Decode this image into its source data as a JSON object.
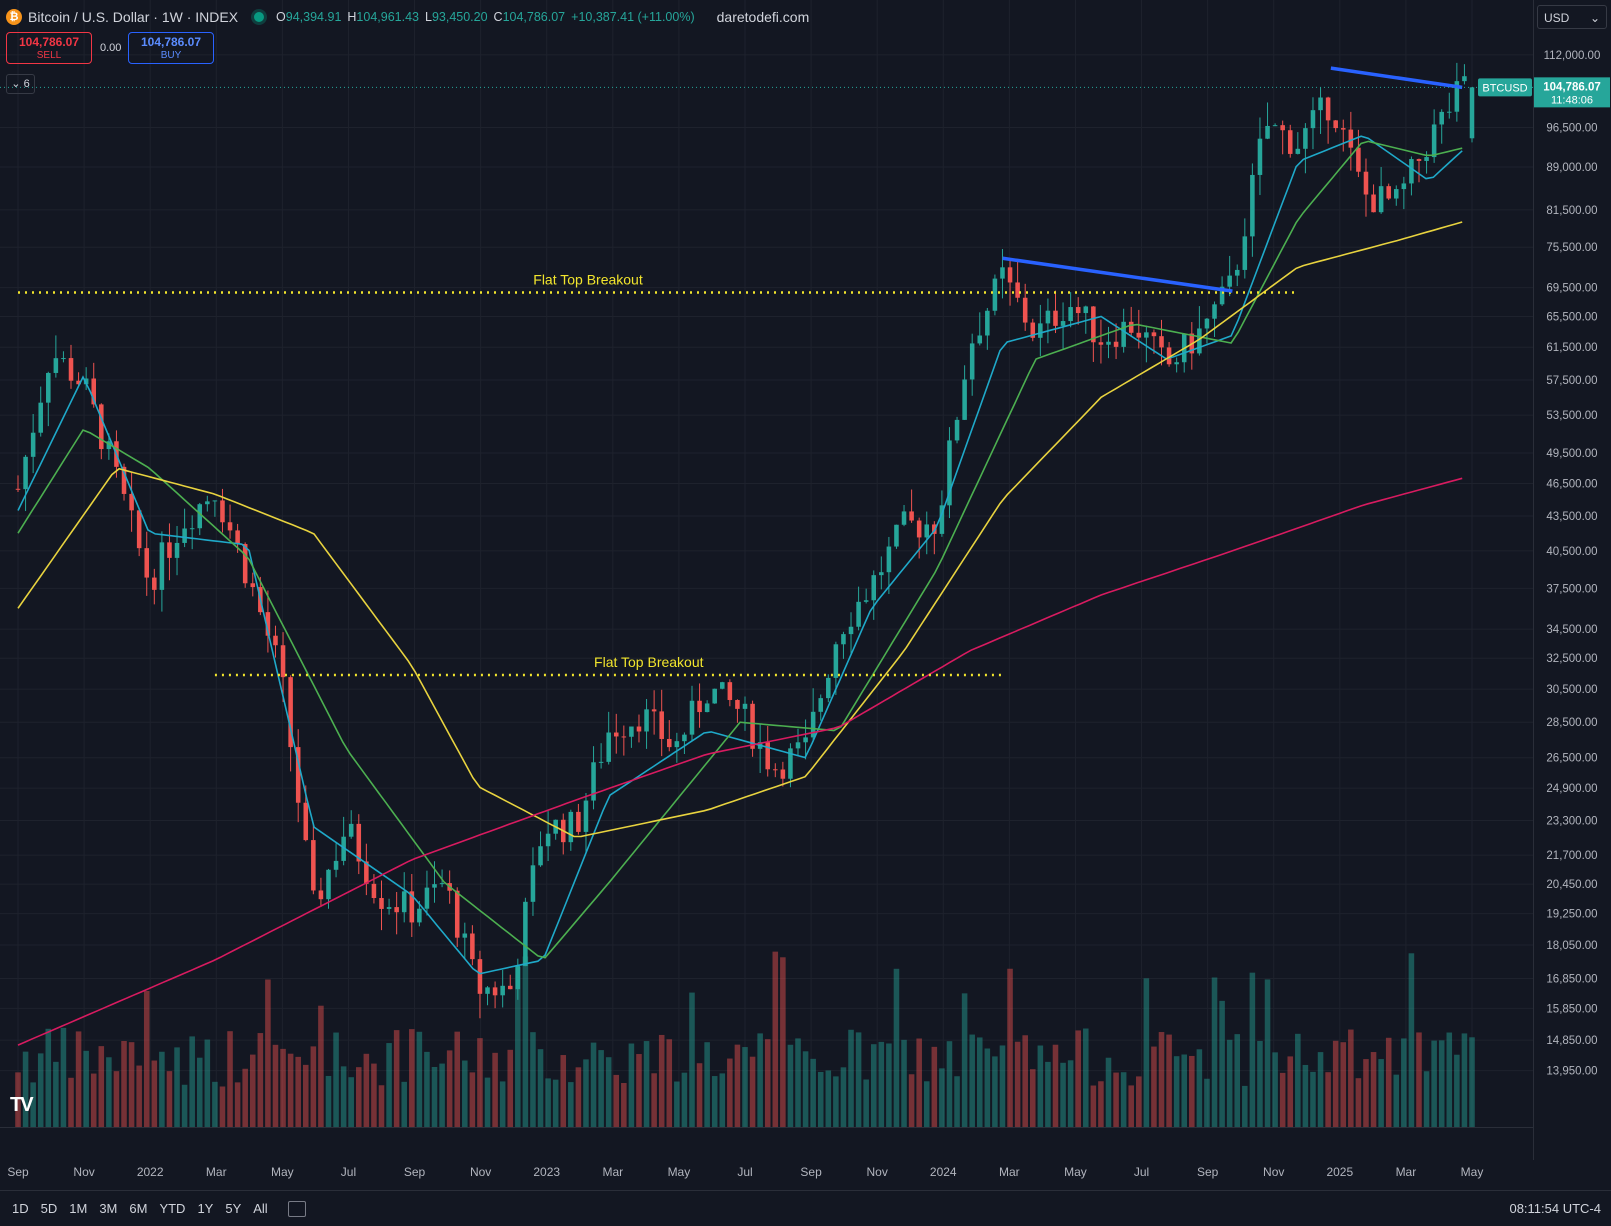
{
  "header": {
    "coin_icon": "bitcoin-icon",
    "symbol_title": "Bitcoin / U.S. Dollar · 1W · INDEX",
    "o_label": "O",
    "o_value": "94,394.91",
    "h_label": "H",
    "h_value": "104,961.43",
    "l_label": "L",
    "l_value": "93,450.20",
    "c_label": "C",
    "c_value": "104,786.07",
    "change": "+10,387.41 (+11.00%)",
    "site": "daretodefi.com"
  },
  "trade": {
    "sell_price": "104,786.07",
    "sell_label": "SELL",
    "spread": "0.00",
    "buy_price": "104,786.07",
    "buy_label": "BUY"
  },
  "indicators_collapse": "6",
  "currency": "USD",
  "price_label": {
    "symbol": "BTCUSD",
    "price": "104,786.07",
    "countdown": "11:48:06"
  },
  "timeframes": [
    "1D",
    "5D",
    "1M",
    "3M",
    "6M",
    "YTD",
    "1Y",
    "5Y",
    "All"
  ],
  "clock": "08:11:54 UTC-4",
  "colors": {
    "up": "#26a69a",
    "down": "#ef5350",
    "ma_cyan": "#1fa9c9",
    "ma_green": "#4caf50",
    "ma_yellow": "#e8d33f",
    "ma_red": "#d81b60",
    "trendline": "#2962ff",
    "flat_top": "#f2e52d"
  },
  "chart_data": {
    "type": "candlestick",
    "title": "Bitcoin / U.S. Dollar · 1W · INDEX",
    "scale": "log",
    "ylim": [
      13000,
      115000
    ],
    "price_ticks": [
      112000,
      96500,
      89000,
      81500,
      75500,
      69500,
      65500,
      61500,
      57500,
      53500,
      49500,
      46500,
      43500,
      40500,
      37500,
      34500,
      32500,
      30500,
      28500,
      26500,
      24900,
      23300,
      21700,
      20450,
      19250,
      18050,
      16850,
      15850,
      14850,
      13950
    ],
    "x_labels": [
      "Sep",
      "Nov",
      "2022",
      "Mar",
      "May",
      "Jul",
      "Sep",
      "Nov",
      "2023",
      "Mar",
      "May",
      "Jul",
      "Sep",
      "Nov",
      "2024",
      "Mar",
      "May",
      "Jul",
      "Sep",
      "Nov",
      "2025",
      "Mar",
      "May"
    ],
    "close_path": [
      [
        "2021-09",
        46000
      ],
      [
        "2021-10",
        61000
      ],
      [
        "2021-11",
        57000
      ],
      [
        "2021-12",
        47000
      ],
      [
        "2022-01",
        38000
      ],
      [
        "2022-02",
        43000
      ],
      [
        "2022-03",
        46000
      ],
      [
        "2022-04",
        38500
      ],
      [
        "2022-05",
        31500
      ],
      [
        "2022-06",
        19500
      ],
      [
        "2022-07",
        23000
      ],
      [
        "2022-08",
        20000
      ],
      [
        "2022-09",
        19400
      ],
      [
        "2022-10",
        20500
      ],
      [
        "2022-11",
        16500
      ],
      [
        "2022-12",
        16500
      ],
      [
        "2023-01",
        23000
      ],
      [
        "2023-02",
        23000
      ],
      [
        "2023-03",
        28000
      ],
      [
        "2023-04",
        29000
      ],
      [
        "2023-05",
        27000
      ],
      [
        "2023-06",
        30500
      ],
      [
        "2023-07",
        29200
      ],
      [
        "2023-08",
        26000
      ],
      [
        "2023-09",
        27000
      ],
      [
        "2023-10",
        34500
      ],
      [
        "2023-11",
        37800
      ],
      [
        "2023-12",
        42500
      ],
      [
        "2024-01",
        43000
      ],
      [
        "2024-02",
        62000
      ],
      [
        "2024-03",
        71000
      ],
      [
        "2024-04",
        63000
      ],
      [
        "2024-05",
        67500
      ],
      [
        "2024-06",
        62700
      ],
      [
        "2024-07",
        64600
      ],
      [
        "2024-08",
        59000
      ],
      [
        "2024-09",
        63300
      ],
      [
        "2024-10",
        70000
      ],
      [
        "2024-11",
        97000
      ],
      [
        "2024-12",
        93400
      ],
      [
        "2025-01",
        102000
      ],
      [
        "2025-02",
        84000
      ],
      [
        "2025-03",
        82500
      ],
      [
        "2025-04",
        94200
      ],
      [
        "2025-05",
        104786.07
      ]
    ],
    "moving_averages": [
      {
        "color": "cyan",
        "points": [
          [
            "2021-09",
            44000
          ],
          [
            "2021-11",
            58000
          ],
          [
            "2022-01",
            42000
          ],
          [
            "2022-04",
            41000
          ],
          [
            "2022-06",
            23000
          ],
          [
            "2022-09",
            20000
          ],
          [
            "2022-11",
            17000
          ],
          [
            "2023-01",
            17500
          ],
          [
            "2023-03",
            24500
          ],
          [
            "2023-06",
            28000
          ],
          [
            "2023-09",
            26500
          ],
          [
            "2023-11",
            36000
          ],
          [
            "2024-01",
            42500
          ],
          [
            "2024-03",
            62000
          ],
          [
            "2024-06",
            65500
          ],
          [
            "2024-08",
            60000
          ],
          [
            "2024-10",
            63000
          ],
          [
            "2024-12",
            90000
          ],
          [
            "2025-02",
            95000
          ],
          [
            "2025-04",
            86500
          ],
          [
            "2025-05",
            92000
          ]
        ]
      },
      {
        "color": "green",
        "points": [
          [
            "2021-09",
            42000
          ],
          [
            "2021-11",
            52000
          ],
          [
            "2022-01",
            48000
          ],
          [
            "2022-04",
            40000
          ],
          [
            "2022-07",
            27000
          ],
          [
            "2022-10",
            20500
          ],
          [
            "2023-01",
            17500
          ],
          [
            "2023-03",
            20500
          ],
          [
            "2023-07",
            28500
          ],
          [
            "2023-10",
            28000
          ],
          [
            "2024-01",
            39000
          ],
          [
            "2024-04",
            60000
          ],
          [
            "2024-07",
            64500
          ],
          [
            "2024-10",
            62000
          ],
          [
            "2024-12",
            80000
          ],
          [
            "2025-02",
            94000
          ],
          [
            "2025-04",
            91000
          ],
          [
            "2025-05",
            92500
          ]
        ]
      },
      {
        "color": "yellow",
        "points": [
          [
            "2021-09",
            36000
          ],
          [
            "2021-12",
            48000
          ],
          [
            "2022-03",
            45500
          ],
          [
            "2022-06",
            42000
          ],
          [
            "2022-09",
            32000
          ],
          [
            "2022-11",
            25000
          ],
          [
            "2023-02",
            22500
          ],
          [
            "2023-06",
            23800
          ],
          [
            "2023-09",
            25500
          ],
          [
            "2023-12",
            33000
          ],
          [
            "2024-03",
            45000
          ],
          [
            "2024-06",
            55500
          ],
          [
            "2024-09",
            62500
          ],
          [
            "2024-12",
            72500
          ],
          [
            "2025-03",
            76500
          ],
          [
            "2025-05",
            79500
          ]
        ]
      },
      {
        "color": "red",
        "points": [
          [
            "2021-09",
            14700
          ],
          [
            "2022-03",
            17500
          ],
          [
            "2022-09",
            21500
          ],
          [
            "2023-02",
            24300
          ],
          [
            "2023-06",
            26700
          ],
          [
            "2023-10",
            28200
          ],
          [
            "2024-02",
            33000
          ],
          [
            "2024-06",
            37000
          ],
          [
            "2024-10",
            40500
          ],
          [
            "2025-02",
            44500
          ],
          [
            "2025-05",
            47000
          ]
        ]
      }
    ],
    "annotations": [
      {
        "text": "Flat Top Breakout",
        "type": "horizontal-dotted",
        "price": 68800,
        "from": "2021-09",
        "to": "2024-12"
      },
      {
        "text": "Flat Top Breakout",
        "type": "horizontal-dotted",
        "price": 31400,
        "from": "2022-03",
        "to": "2024-03"
      },
      {
        "type": "trendline",
        "from": [
          "2024-03",
          73800
        ],
        "to": [
          "2024-10",
          69000
        ]
      },
      {
        "type": "trendline",
        "from": [
          "2025-01",
          109000
        ],
        "to": [
          "2025-05",
          104786
        ]
      }
    ],
    "volume": "bars along bottom, colored by candle direction"
  }
}
